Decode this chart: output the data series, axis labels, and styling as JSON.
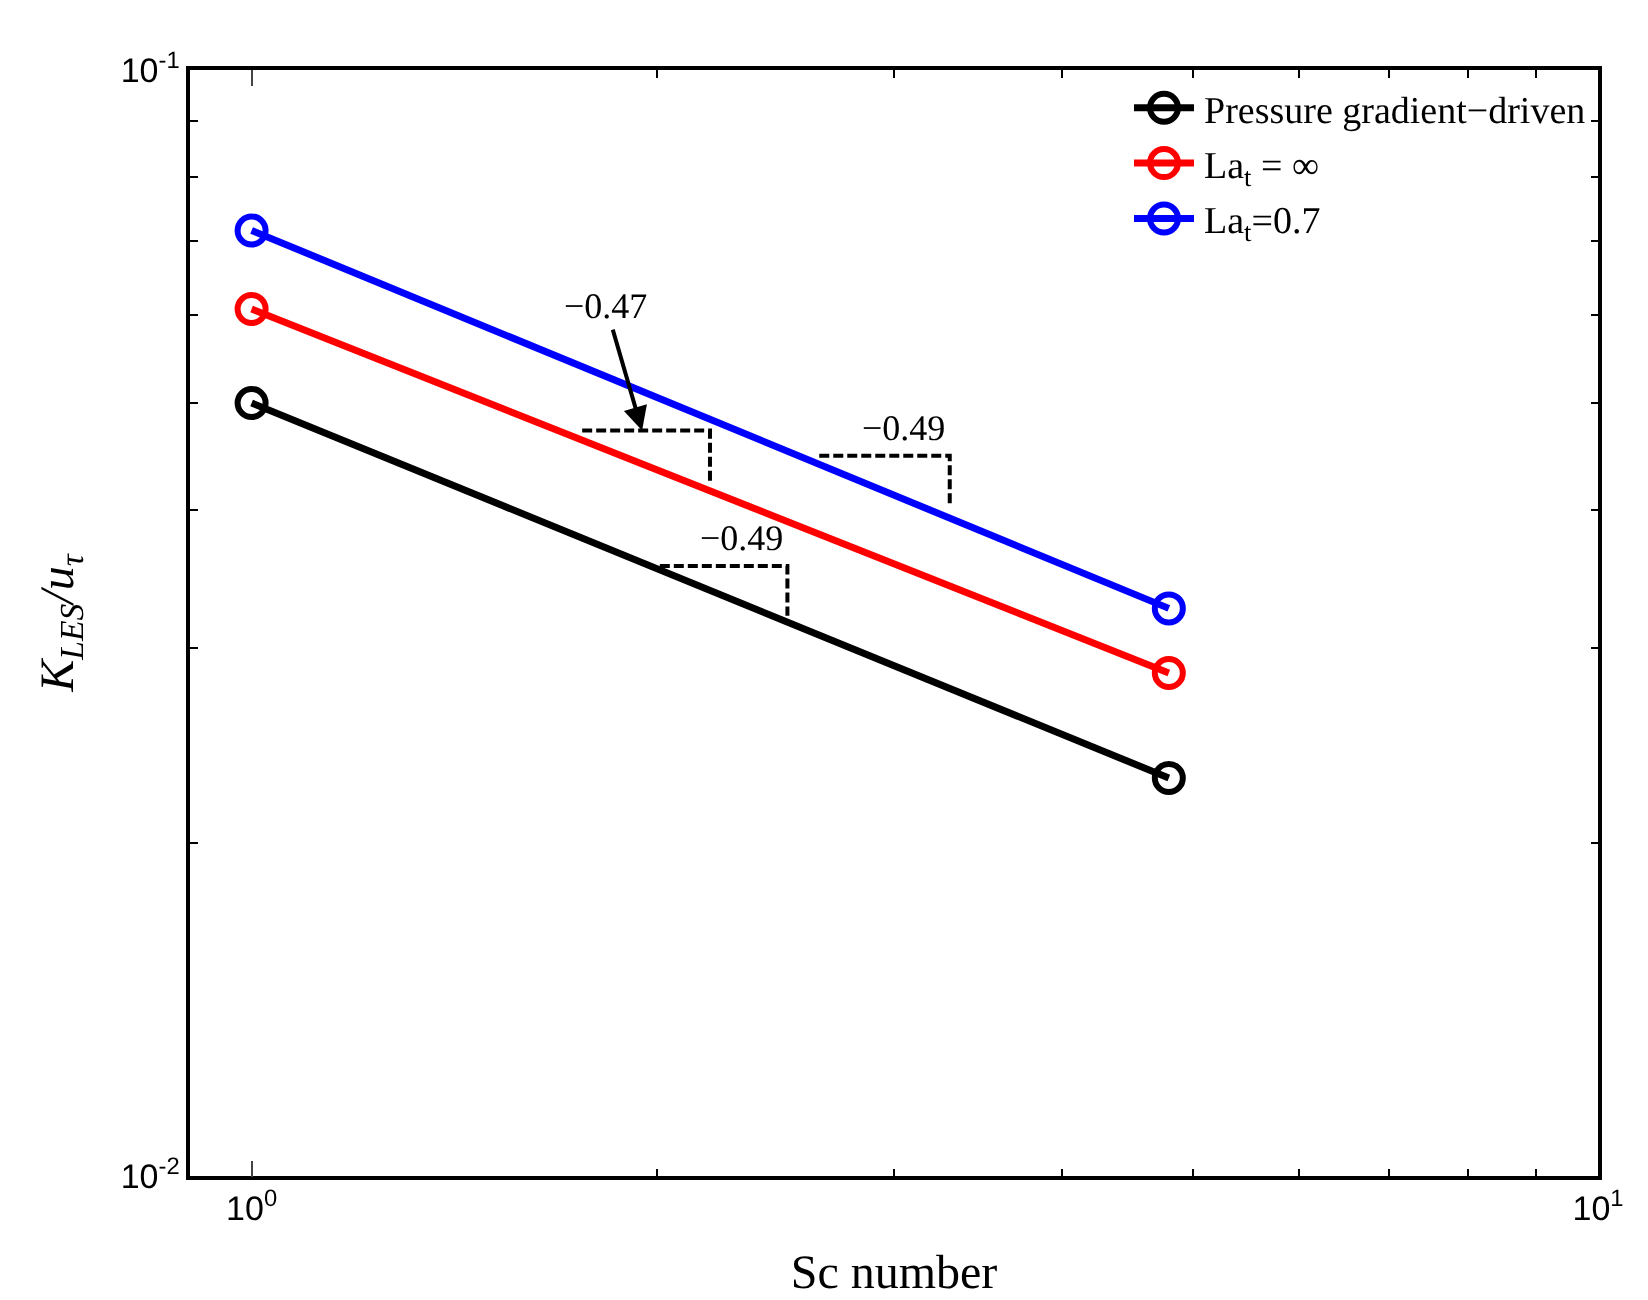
{
  "chart_data": {
    "type": "line",
    "xlabel": "Sc number",
    "ylabel": "K$_{LES}$/u$_{τ}$",
    "log": "xy",
    "grid": false,
    "legend": "top right",
    "marker": "circle",
    "line_style": "solid",
    "xlim": [
      0.9,
      10
    ],
    "xticks": [
      {
        "value": 1,
        "label": "10$^{0}$"
      },
      {
        "value": 10,
        "label": "10$^{1}$"
      }
    ],
    "ylim": [
      0.01,
      0.1
    ],
    "yticks": [
      {
        "value": 0.01,
        "label": "10$^{-2}$"
      },
      {
        "value": 0.1,
        "label": "10$^{-1}$"
      }
    ],
    "series": [
      {
        "name": "Pressure gradient−driven",
        "color": "#000000",
        "x": [
          1,
          4.8
        ],
        "values": [
          0.05,
          0.0229
        ]
      },
      {
        "name": "La$_{t}$ = ∞",
        "color": "#ff0000",
        "x": [
          1,
          4.8
        ],
        "values": [
          0.0608,
          0.0285
        ]
      },
      {
        "name": "La$_{t}$=0.7",
        "color": "#0000ff",
        "x": [
          1,
          4.8
        ],
        "values": [
          0.0716,
          0.0326
        ]
      },
      {
        "color": "#000000",
        "marker": "none",
        "line_style": "dashed",
        "x": [
          1.76,
          2.19,
          2.19
        ],
        "values": [
          0.0472,
          0.0472,
          0.0424
        ]
      },
      {
        "color": "#000000",
        "marker": "none",
        "line_style": "dashed",
        "x": [
          2.64,
          3.3,
          3.3
        ],
        "values": [
          0.0448,
          0.0448,
          0.0403
        ]
      },
      {
        "color": "#000000",
        "marker": "none",
        "line_style": "dashed",
        "x": [
          2.01,
          2.5,
          2.5
        ],
        "values": [
          0.0356,
          0.0356,
          0.0321
        ]
      }
    ],
    "annotations": [
      {
        "text": "−0.47",
        "x": 1.95,
        "y": 0.0472
      },
      {
        "text": "−0.49",
        "x": 3.3,
        "y": 0.0448
      },
      {
        "text": "−0.49",
        "x": 2.5,
        "y": 0.0356
      }
    ]
  }
}
